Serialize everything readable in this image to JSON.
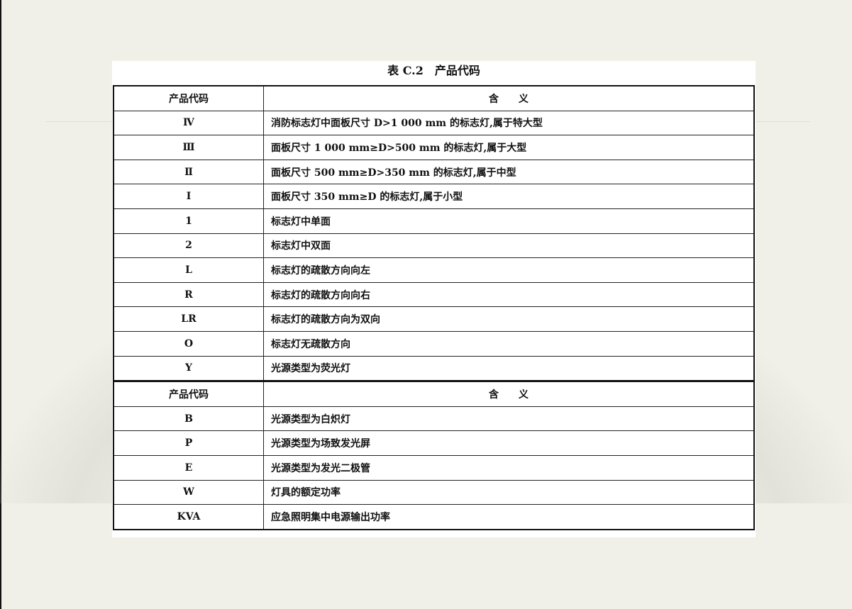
{
  "title": "表 C.2　产品代码",
  "header": {
    "code": "产品代码",
    "meaning": "含　　义"
  },
  "rows": [
    {
      "code": "Ⅳ",
      "meaning": "消防标志灯中面板尺寸 D>1 000 mm 的标志灯,属于特大型"
    },
    {
      "code": "Ⅲ",
      "meaning": "面板尺寸 1 000 mm≥D>500 mm 的标志灯,属于大型"
    },
    {
      "code": "Ⅱ",
      "meaning": "面板尺寸 500 mm≥D>350 mm 的标志灯,属于中型"
    },
    {
      "code": "Ⅰ",
      "meaning": "面板尺寸 350 mm≥D 的标志灯,属于小型"
    },
    {
      "code": "1",
      "meaning": "标志灯中单面"
    },
    {
      "code": "2",
      "meaning": "标志灯中双面"
    },
    {
      "code": "L",
      "meaning": "标志灯的疏散方向向左"
    },
    {
      "code": "R",
      "meaning": "标志灯的疏散方向向右"
    },
    {
      "code": "LR",
      "meaning": "标志灯的疏散方向为双向"
    },
    {
      "code": "O",
      "meaning": "标志灯无疏散方向"
    },
    {
      "code": "Y",
      "meaning": "光源类型为荧光灯"
    }
  ],
  "rows2": [
    {
      "code": "B",
      "meaning": "光源类型为白炽灯"
    },
    {
      "code": "P",
      "meaning": "光源类型为场致发光屏"
    },
    {
      "code": "E",
      "meaning": "光源类型为发光二极管"
    },
    {
      "code": "W",
      "meaning": "灯具的额定功率"
    },
    {
      "code": "KVA",
      "meaning": "应急照明集中电源输出功率"
    }
  ]
}
